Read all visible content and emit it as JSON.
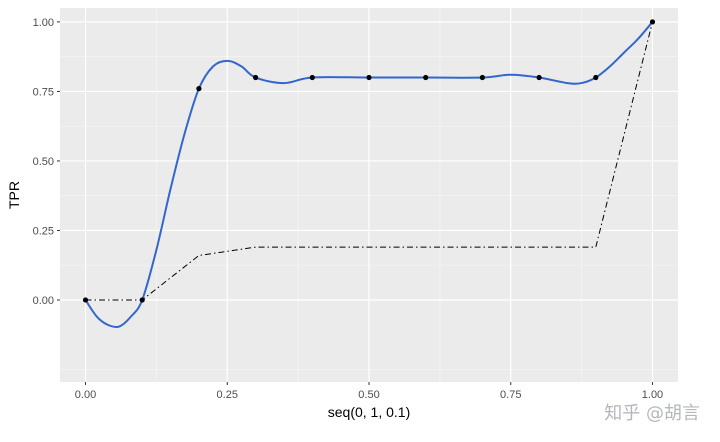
{
  "chart_data": {
    "type": "line",
    "xlabel": "seq(0, 1, 0.1)",
    "ylabel": "TPR",
    "xlim": [
      -0.045,
      1.045
    ],
    "ylim": [
      -0.295,
      1.05
    ],
    "x_ticks": [
      0,
      0.25,
      0.5,
      0.75,
      1
    ],
    "x_tick_labels": [
      "0.00",
      "0.25",
      "0.50",
      "0.75",
      "1.00"
    ],
    "y_ticks": [
      0,
      0.25,
      0.5,
      0.75,
      1
    ],
    "y_tick_labels": [
      "0.00",
      "0.25",
      "0.50",
      "0.75",
      "1.00"
    ],
    "grid": true,
    "legend": "none",
    "series": [
      {
        "style": "points",
        "color": "#000000",
        "x": [
          0,
          0.1,
          0.2,
          0.3,
          0.4,
          0.5,
          0.6,
          0.7,
          0.8,
          0.9,
          1.0
        ],
        "y": [
          0,
          0,
          0.76,
          0.8,
          0.8,
          0.8,
          0.8,
          0.8,
          0.8,
          0.8,
          1.0
        ]
      },
      {
        "style": "smooth",
        "color": "#3366cc",
        "x": [
          0,
          0.02,
          0.04,
          0.06,
          0.08,
          0.1,
          0.125,
          0.15,
          0.175,
          0.2,
          0.225,
          0.25,
          0.275,
          0.3,
          0.35,
          0.4,
          0.5,
          0.6,
          0.7,
          0.75,
          0.8,
          0.85,
          0.875,
          0.9,
          0.925,
          0.95,
          0.975,
          1.0
        ],
        "y": [
          0,
          -0.06,
          -0.09,
          -0.095,
          -0.06,
          0,
          0.18,
          0.4,
          0.6,
          0.76,
          0.84,
          0.86,
          0.84,
          0.8,
          0.78,
          0.8,
          0.8,
          0.8,
          0.8,
          0.81,
          0.8,
          0.78,
          0.78,
          0.8,
          0.84,
          0.89,
          0.94,
          1.0
        ]
      },
      {
        "style": "dashdot",
        "color": "#000000",
        "x": [
          0,
          0.1,
          0.2,
          0.3,
          0.4,
          0.5,
          0.6,
          0.7,
          0.8,
          0.9,
          1.0
        ],
        "y": [
          0,
          0,
          0.16,
          0.19,
          0.19,
          0.19,
          0.19,
          0.19,
          0.19,
          0.19,
          1.0
        ]
      }
    ]
  },
  "colors": {
    "panel_background": "#ebebeb",
    "grid_major": "#ffffff",
    "grid_minor": "#f5f5f5",
    "tick_text": "#4d4d4d"
  },
  "watermark": "知乎 @胡言"
}
